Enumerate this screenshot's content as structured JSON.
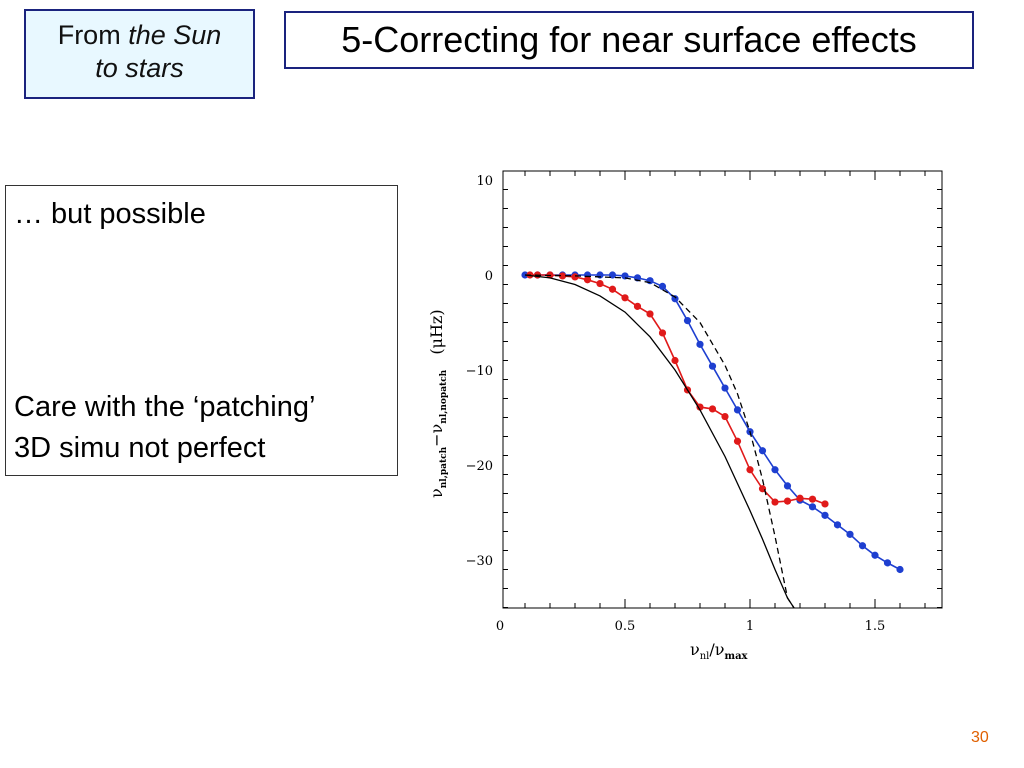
{
  "badge": {
    "line1_prefix": "From ",
    "line1_italic": "the Sun",
    "line2_italic": "to stars"
  },
  "title": "5-Correcting for near surface effects",
  "notes": {
    "line1": "… but possible",
    "line2": "Care with the ‘patching’",
    "line3": "3D simu not perfect"
  },
  "page_number": "30",
  "colors": {
    "blue_series": "#1e3fd0",
    "red_series": "#e01a1a",
    "frame": "#1a237e",
    "page_number": "#e06000"
  },
  "chart_data": {
    "type": "line",
    "xlabel_main": "ν",
    "xlabel_sub1": "nl",
    "xlabel_mid": "/ν",
    "xlabel_sub2": "max",
    "ylabel_main": "ν",
    "ylabel_sub1": "nl,patch",
    "ylabel_mid": "−ν",
    "ylabel_sub2": "nl,nopatch",
    "ylabel_unit": "(μHz)",
    "xlim": [
      0,
      1.8
    ],
    "ylim": [
      -35,
      10
    ],
    "xticks": [
      0,
      0.5,
      1,
      1.5
    ],
    "xtick_labels": [
      "0",
      "0.5",
      "1",
      "1.5"
    ],
    "yticks": [
      10,
      0,
      -10,
      -20,
      -30
    ],
    "ytick_labels": [
      "10",
      "0",
      "−10",
      "−20",
      "−30"
    ],
    "series": [
      {
        "color": "blue",
        "style": "line+markers",
        "x": [
          0.1,
          0.15,
          0.2,
          0.25,
          0.3,
          0.35,
          0.4,
          0.45,
          0.5,
          0.55,
          0.6,
          0.65,
          0.7,
          0.75,
          0.8,
          0.85,
          0.9,
          0.95,
          1.0,
          1.05,
          1.1,
          1.15,
          1.2,
          1.25,
          1.3,
          1.35,
          1.4,
          1.45,
          1.5,
          1.55,
          1.6
        ],
        "y": [
          0,
          0,
          0,
          0,
          0,
          0,
          0,
          0,
          -0.1,
          -0.3,
          -0.6,
          -1.2,
          -2.5,
          -4.8,
          -7.3,
          -9.6,
          -11.9,
          -14.2,
          -16.5,
          -18.5,
          -20.5,
          -22.2,
          -23.7,
          -24.4,
          -25.3,
          -26.3,
          -27.3,
          -28.5,
          -29.5,
          -30.3,
          -31.0
        ]
      },
      {
        "color": "red",
        "style": "line+markers",
        "x": [
          0.12,
          0.15,
          0.2,
          0.25,
          0.3,
          0.35,
          0.4,
          0.45,
          0.5,
          0.55,
          0.6,
          0.65,
          0.7,
          0.75,
          0.8,
          0.85,
          0.9,
          0.95,
          1.0,
          1.05,
          1.1,
          1.15,
          1.2,
          1.25,
          1.3
        ],
        "y": [
          0,
          0,
          0,
          -0.1,
          -0.2,
          -0.5,
          -0.9,
          -1.5,
          -2.4,
          -3.3,
          -4.1,
          -6.1,
          -9.0,
          -12.1,
          -13.9,
          -14.1,
          -14.9,
          -17.5,
          -20.5,
          -22.5,
          -23.9,
          -23.8,
          -23.5,
          -23.6,
          -24.1
        ]
      },
      {
        "color": "black",
        "style": "solid",
        "x": [
          0.1,
          0.2,
          0.3,
          0.4,
          0.5,
          0.6,
          0.7,
          0.8,
          0.9,
          1.0,
          1.05,
          1.1,
          1.15,
          1.2
        ],
        "y": [
          0,
          -0.3,
          -1.0,
          -2.2,
          -3.9,
          -6.5,
          -10.0,
          -14.2,
          -19.1,
          -24.8,
          -27.8,
          -31.0,
          -34.0,
          -36.0
        ]
      },
      {
        "color": "black",
        "style": "dashed",
        "x": [
          0.1,
          0.3,
          0.5,
          0.6,
          0.7,
          0.8,
          0.9,
          0.95,
          1.0,
          1.05,
          1.1,
          1.15,
          1.2
        ],
        "y": [
          0,
          -0.1,
          -0.3,
          -0.8,
          -2.3,
          -5.0,
          -9.5,
          -12.5,
          -16.5,
          -21.5,
          -27.5,
          -34.0,
          -36.0
        ]
      }
    ]
  }
}
